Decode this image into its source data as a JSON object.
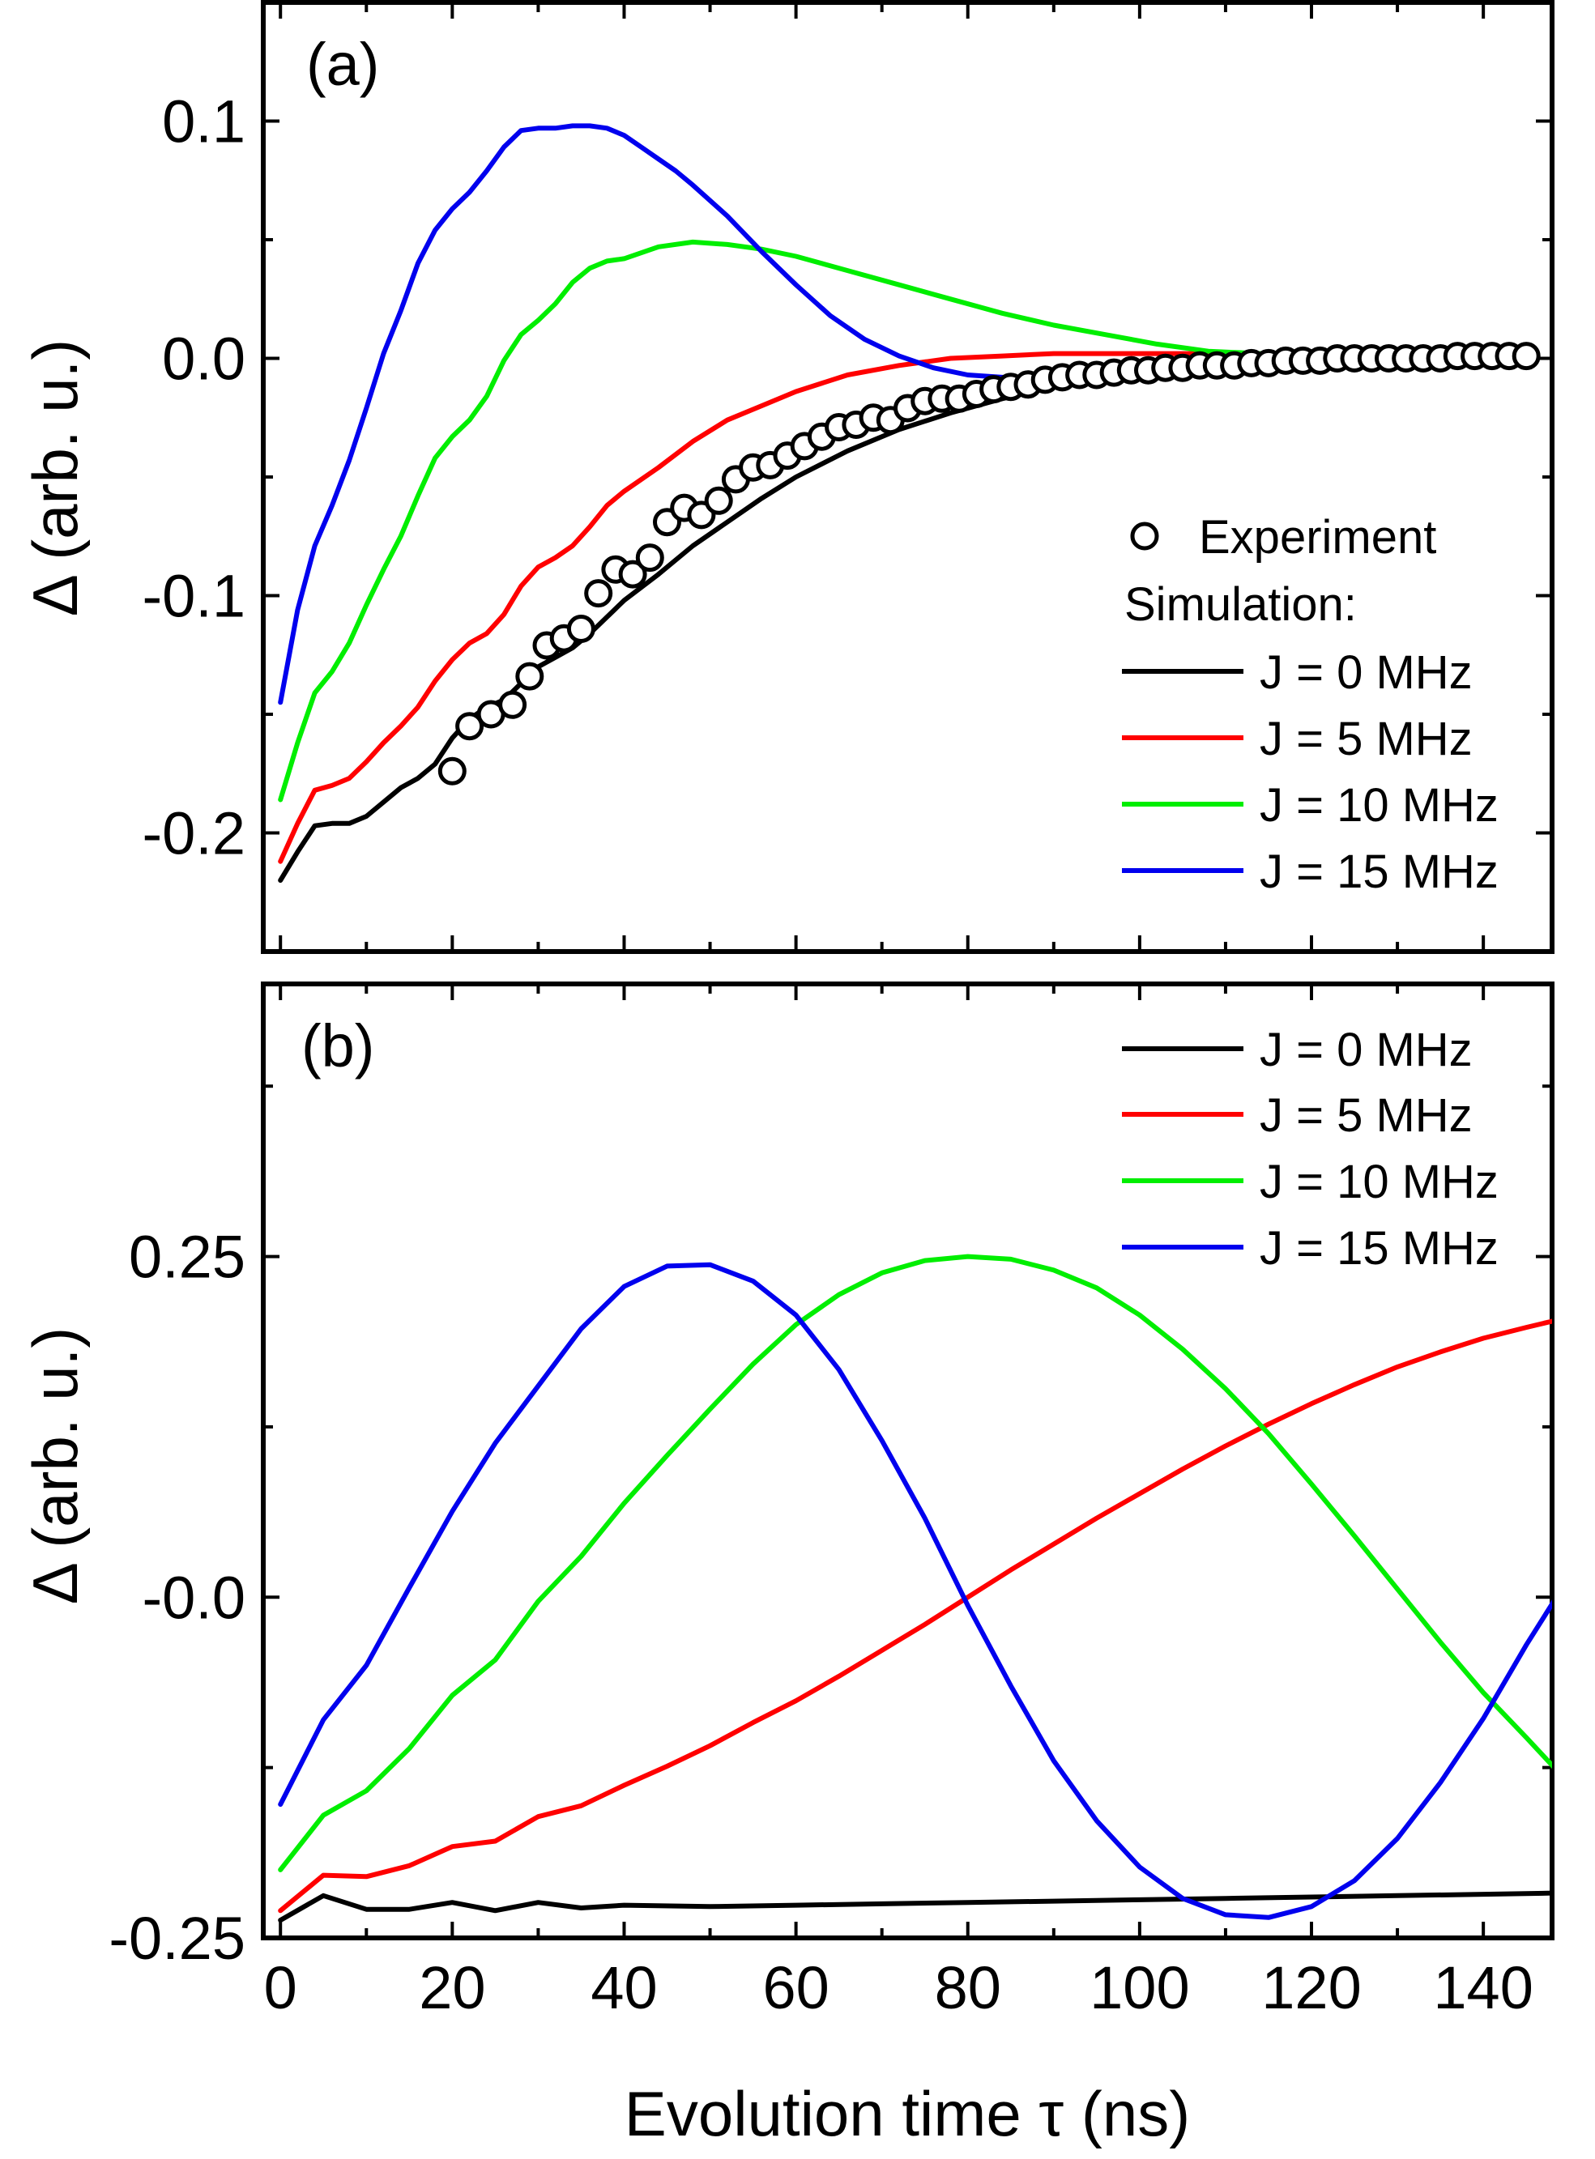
{
  "chart_data": [
    {
      "id": "panel_a",
      "type": "line",
      "panel_label": "(a)",
      "ylabel": "Δ (arb. u.)",
      "xlim": [
        -2,
        148
      ],
      "ylim": [
        -0.25,
        0.15
      ],
      "yticks": [
        {
          "value": -0.2,
          "label": "-0.2"
        },
        {
          "value": -0.1,
          "label": "-0.1"
        },
        {
          "value": 0.0,
          "label": "0.0"
        },
        {
          "value": 0.1,
          "label": "0.1"
        }
      ],
      "legend_position": "bottom-right",
      "legend": {
        "experiment_label": "Experiment",
        "simulation_header": "Simulation:"
      },
      "experiment": {
        "name": "Experiment",
        "x": [
          20,
          22,
          24.5,
          27,
          29,
          31,
          33,
          35,
          37,
          39,
          41,
          43,
          45,
          47,
          49,
          51,
          53,
          55,
          57,
          59,
          61,
          63,
          65,
          67,
          69,
          71,
          73,
          75,
          77,
          79,
          81,
          83,
          85,
          87,
          89,
          91,
          93,
          95,
          97,
          99,
          101,
          103,
          105,
          107,
          109,
          111,
          113,
          115,
          117,
          119,
          121,
          123,
          125,
          127,
          129,
          131,
          133,
          135,
          137,
          139,
          141,
          143,
          145
        ],
        "y": [
          -0.174,
          -0.155,
          -0.15,
          -0.146,
          -0.134,
          -0.121,
          -0.118,
          -0.114,
          -0.099,
          -0.089,
          -0.091,
          -0.084,
          -0.069,
          -0.063,
          -0.066,
          -0.06,
          -0.051,
          -0.046,
          -0.045,
          -0.041,
          -0.037,
          -0.033,
          -0.029,
          -0.028,
          -0.025,
          -0.026,
          -0.021,
          -0.018,
          -0.017,
          -0.017,
          -0.015,
          -0.013,
          -0.012,
          -0.011,
          -0.009,
          -0.008,
          -0.007,
          -0.007,
          -0.006,
          -0.005,
          -0.005,
          -0.004,
          -0.004,
          -0.003,
          -0.003,
          -0.003,
          -0.002,
          -0.002,
          -0.001,
          -0.001,
          -0.001,
          0,
          0,
          0,
          0,
          0,
          0,
          0,
          0.001,
          0.001,
          0.001,
          0.001,
          0.001
        ]
      },
      "series": [
        {
          "name": "J = 0 MHz",
          "color": "#000000",
          "x": [
            0,
            2,
            4,
            6,
            8,
            10,
            12,
            14,
            16,
            18,
            20,
            22,
            24,
            26,
            28,
            30,
            32,
            34,
            36,
            38,
            40,
            44,
            48,
            52,
            56,
            60,
            66,
            72,
            78,
            84,
            90,
            96,
            102,
            108,
            114,
            120,
            126,
            132,
            138,
            144
          ],
          "y": [
            -0.22,
            -0.208,
            -0.197,
            -0.196,
            -0.196,
            -0.193,
            -0.187,
            -0.181,
            -0.177,
            -0.171,
            -0.16,
            -0.152,
            -0.147,
            -0.144,
            -0.137,
            -0.13,
            -0.126,
            -0.122,
            -0.116,
            -0.109,
            -0.102,
            -0.091,
            -0.079,
            -0.069,
            -0.059,
            -0.05,
            -0.039,
            -0.03,
            -0.023,
            -0.017,
            -0.012,
            -0.009,
            -0.006,
            -0.004,
            -0.003,
            -0.002,
            -0.001,
            0,
            0,
            0
          ]
        },
        {
          "name": "J = 5 MHz",
          "color": "#ff0000",
          "x": [
            0,
            2,
            4,
            6,
            8,
            10,
            12,
            14,
            16,
            18,
            20,
            22,
            24,
            26,
            28,
            30,
            32,
            34,
            36,
            38,
            40,
            44,
            48,
            52,
            56,
            60,
            66,
            72,
            78,
            84,
            90,
            96,
            102,
            108,
            114,
            120,
            126,
            132,
            138,
            144
          ],
          "y": [
            -0.212,
            -0.196,
            -0.182,
            -0.18,
            -0.177,
            -0.17,
            -0.162,
            -0.155,
            -0.147,
            -0.136,
            -0.127,
            -0.12,
            -0.116,
            -0.108,
            -0.096,
            -0.088,
            -0.084,
            -0.079,
            -0.071,
            -0.062,
            -0.056,
            -0.046,
            -0.035,
            -0.026,
            -0.02,
            -0.014,
            -0.007,
            -0.003,
            0,
            0.001,
            0.002,
            0.002,
            0.002,
            0.002,
            0.001,
            0.001,
            0.001,
            0,
            0,
            0
          ]
        },
        {
          "name": "J = 10 MHz",
          "color": "#00ee00",
          "x": [
            0,
            2,
            4,
            6,
            8,
            10,
            12,
            14,
            16,
            18,
            20,
            22,
            24,
            26,
            28,
            30,
            32,
            34,
            36,
            38,
            40,
            44,
            48,
            52,
            56,
            60,
            66,
            72,
            78,
            84,
            90,
            96,
            102,
            108,
            114,
            120,
            126,
            132,
            138,
            144
          ],
          "y": [
            -0.186,
            -0.162,
            -0.141,
            -0.132,
            -0.12,
            -0.104,
            -0.089,
            -0.075,
            -0.058,
            -0.042,
            -0.033,
            -0.026,
            -0.016,
            -0.001,
            0.01,
            0.016,
            0.023,
            0.032,
            0.038,
            0.041,
            0.042,
            0.047,
            0.049,
            0.048,
            0.046,
            0.043,
            0.037,
            0.031,
            0.025,
            0.019,
            0.014,
            0.01,
            0.006,
            0.003,
            0.002,
            0.001,
            0,
            0,
            0,
            0
          ]
        },
        {
          "name": "J = 15 MHz",
          "color": "#0000ee",
          "x": [
            0,
            2,
            4,
            6,
            8,
            10,
            12,
            14,
            16,
            18,
            20,
            22,
            24,
            26,
            28,
            30,
            32,
            34,
            36,
            38,
            40,
            42,
            44,
            46,
            48,
            52,
            56,
            60,
            64,
            68,
            72,
            76,
            80,
            84,
            88,
            92,
            96,
            100,
            104,
            108,
            112
          ],
          "y": [
            -0.145,
            -0.106,
            -0.079,
            -0.062,
            -0.043,
            -0.021,
            0.002,
            0.02,
            0.04,
            0.054,
            0.063,
            0.07,
            0.079,
            0.089,
            0.096,
            0.097,
            0.097,
            0.098,
            0.098,
            0.097,
            0.094,
            0.089,
            0.084,
            0.079,
            0.073,
            0.06,
            0.045,
            0.031,
            0.018,
            0.008,
            0.001,
            -0.004,
            -0.007,
            -0.008,
            -0.008,
            -0.007,
            -0.006,
            -0.004,
            -0.003,
            -0.002,
            -0.001
          ]
        }
      ]
    },
    {
      "id": "panel_b",
      "type": "line",
      "panel_label": "(b)",
      "ylabel": "Δ (arb. u.)",
      "xlabel": "Evolution time τ (ns)",
      "xlim": [
        -2,
        148
      ],
      "ylim": [
        -0.25,
        0.45
      ],
      "xticks": [
        0,
        20,
        40,
        60,
        80,
        100,
        120,
        140
      ],
      "yticks": [
        {
          "value": -0.25,
          "label": "-0.25"
        },
        {
          "value": 0.0,
          "label": "-0.0"
        },
        {
          "value": 0.25,
          "label": "0.25"
        }
      ],
      "legend_position": "top-right",
      "series": [
        {
          "name": "J = 0 MHz",
          "color": "#000000",
          "x": [
            0,
            5,
            10,
            15,
            20,
            25,
            30,
            35,
            40,
            50,
            60,
            70,
            80,
            90,
            100,
            110,
            120,
            130,
            140,
            149
          ],
          "y": [
            -0.237,
            -0.219,
            -0.229,
            -0.229,
            -0.224,
            -0.23,
            -0.224,
            -0.228,
            -0.226,
            -0.227,
            -0.226,
            -0.225,
            -0.224,
            -0.223,
            -0.222,
            -0.221,
            -0.22,
            -0.219,
            -0.218,
            -0.217
          ]
        },
        {
          "name": "J = 5 MHz",
          "color": "#ff0000",
          "x": [
            0,
            5,
            10,
            15,
            20,
            25,
            30,
            35,
            40,
            45,
            50,
            55,
            60,
            65,
            70,
            75,
            80,
            85,
            90,
            95,
            100,
            105,
            110,
            115,
            120,
            125,
            130,
            135,
            140,
            145,
            149
          ],
          "y": [
            -0.23,
            -0.204,
            -0.205,
            -0.197,
            -0.183,
            -0.179,
            -0.161,
            -0.153,
            -0.138,
            -0.124,
            -0.109,
            -0.092,
            -0.076,
            -0.058,
            -0.039,
            -0.02,
            0,
            0.02,
            0.039,
            0.058,
            0.076,
            0.094,
            0.111,
            0.127,
            0.142,
            0.156,
            0.169,
            0.18,
            0.19,
            0.198,
            0.204
          ]
        },
        {
          "name": "J = 10 MHz",
          "color": "#00ee00",
          "x": [
            0,
            5,
            10,
            15,
            20,
            25,
            30,
            35,
            40,
            45,
            50,
            55,
            60,
            65,
            70,
            75,
            80,
            85,
            90,
            95,
            100,
            105,
            110,
            115,
            120,
            125,
            130,
            135,
            140,
            145,
            149
          ],
          "y": [
            -0.2,
            -0.16,
            -0.142,
            -0.111,
            -0.072,
            -0.046,
            -0.003,
            0.03,
            0.069,
            0.104,
            0.138,
            0.171,
            0.2,
            0.222,
            0.238,
            0.247,
            0.25,
            0.248,
            0.24,
            0.227,
            0.207,
            0.182,
            0.153,
            0.12,
            0.083,
            0.045,
            0.006,
            -0.033,
            -0.07,
            -0.103,
            -0.13
          ]
        },
        {
          "name": "J = 15 MHz",
          "color": "#0000ee",
          "x": [
            0,
            5,
            10,
            15,
            20,
            25,
            30,
            35,
            40,
            45,
            50,
            55,
            60,
            65,
            70,
            75,
            80,
            85,
            90,
            95,
            100,
            105,
            110,
            115,
            120,
            125,
            130,
            135,
            140,
            145,
            149
          ],
          "y": [
            -0.152,
            -0.09,
            -0.05,
            0.007,
            0.063,
            0.113,
            0.155,
            0.197,
            0.228,
            0.243,
            0.244,
            0.232,
            0.207,
            0.167,
            0.115,
            0.058,
            -0.006,
            -0.065,
            -0.12,
            -0.164,
            -0.198,
            -0.221,
            -0.233,
            -0.235,
            -0.227,
            -0.208,
            -0.177,
            -0.136,
            -0.089,
            -0.035,
            0.005
          ]
        }
      ]
    }
  ]
}
